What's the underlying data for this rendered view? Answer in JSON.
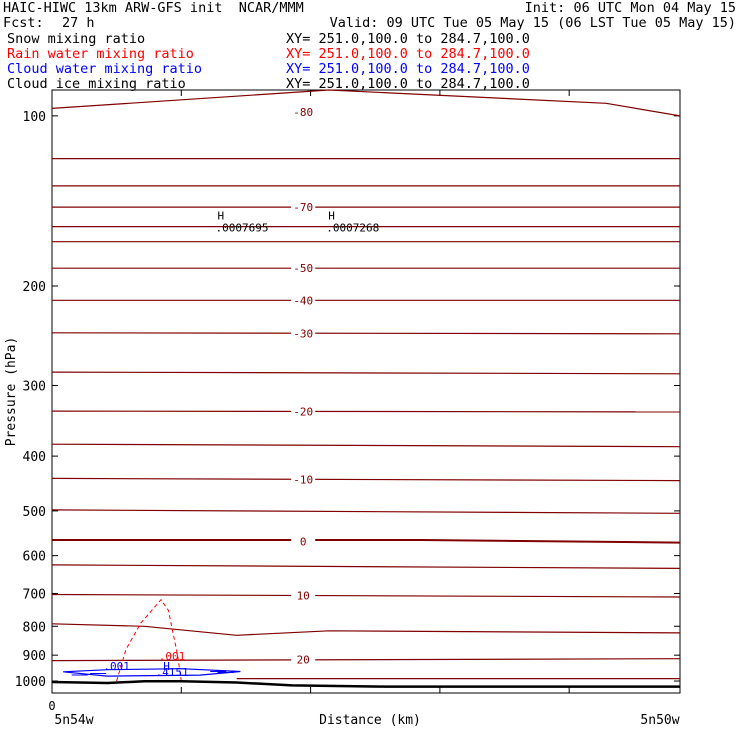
{
  "header": {
    "title": "HAIC-HIWC 13km ARW-GFS init  NCAR/MMM",
    "init": "Init: 06 UTC Mon 04 May 15",
    "fcst_label": "Fcst:",
    "fcst_value": "27 h",
    "valid": "Valid: 09 UTC Tue 05 May 15 (06 LST Tue 05 May 15)"
  },
  "fields": [
    {
      "name": "Snow mixing ratio",
      "xy": "XY= 251.0,100.0 to 284.7,100.0",
      "color": "#000000"
    },
    {
      "name": "Rain water mixing ratio",
      "xy": "XY= 251.0,100.0 to 284.7,100.0",
      "color": "#ff0000"
    },
    {
      "name": "Cloud water mixing ratio",
      "xy": "XY= 251.0,100.0 to 284.7,100.0",
      "color": "#0000ff"
    },
    {
      "name": "Cloud ice mixing ratio",
      "xy": "XY= 251.0,100.0 to 284.7,100.0",
      "color": "#000000"
    }
  ],
  "colors": {
    "temperature": "#800000",
    "rain": "#ff0000",
    "cloud_water": "#0000ff",
    "terrain": "#000000"
  },
  "chart_data": {
    "type": "line",
    "ylabel": "Pressure (hPa)",
    "xlabel": "Distance (km)",
    "y_scale": "log",
    "y_reversed": true,
    "ylim": [
      1050,
      90
    ],
    "y_ticks": [
      "100",
      "200",
      "300",
      "400",
      "500",
      "600",
      "700",
      "800",
      "900",
      "1000"
    ],
    "x_zero_label": "0",
    "x_end_labels": {
      "left": "5n54w",
      "right": "5n50w"
    },
    "x_max": 34,
    "x_tick_positions": [
      0,
      7,
      14,
      21,
      28
    ],
    "isotherms": [
      {
        "label": "-80",
        "points": [
          [
            0,
            97
          ],
          [
            15,
            90
          ],
          [
            30,
            95
          ],
          [
            34,
            100
          ]
        ]
      },
      {
        "label": "",
        "points": [
          [
            0,
            119
          ],
          [
            34,
            119
          ]
        ]
      },
      {
        "label": "",
        "points": [
          [
            0,
            133
          ],
          [
            34,
            133
          ]
        ]
      },
      {
        "label": "-70",
        "points": [
          [
            0,
            145
          ],
          [
            34,
            145
          ]
        ]
      },
      {
        "label": "",
        "points": [
          [
            0,
            157
          ],
          [
            34,
            157
          ]
        ]
      },
      {
        "label": "",
        "points": [
          [
            0,
            167
          ],
          [
            34,
            167
          ]
        ]
      },
      {
        "label": "-50",
        "points": [
          [
            0,
            186
          ],
          [
            34,
            186
          ]
        ]
      },
      {
        "label": "-40",
        "points": [
          [
            0,
            212
          ],
          [
            34,
            212
          ]
        ]
      },
      {
        "label": "-30",
        "points": [
          [
            0,
            242
          ],
          [
            34,
            243
          ]
        ]
      },
      {
        "label": "",
        "points": [
          [
            0,
            284
          ],
          [
            34,
            286
          ]
        ]
      },
      {
        "label": "-20",
        "points": [
          [
            0,
            333
          ],
          [
            34,
            334
          ]
        ]
      },
      {
        "label": "",
        "points": [
          [
            0,
            381
          ],
          [
            34,
            385
          ]
        ]
      },
      {
        "label": "-10",
        "points": [
          [
            0,
            438
          ],
          [
            34,
            442
          ]
        ]
      },
      {
        "label": "",
        "points": [
          [
            0,
            498
          ],
          [
            34,
            505
          ]
        ]
      },
      {
        "label": "0",
        "points": [
          [
            0,
            563
          ],
          [
            20,
            563
          ],
          [
            34,
            569
          ]
        ]
      },
      {
        "label": "",
        "points": [
          [
            0,
            623
          ],
          [
            34,
            632
          ]
        ]
      },
      {
        "label": "10",
        "points": [
          [
            0,
            703
          ],
          [
            34,
            710
          ]
        ]
      },
      {
        "label": "",
        "points": [
          [
            0,
            792
          ],
          [
            5,
            800
          ],
          [
            10,
            830
          ],
          [
            15,
            815
          ],
          [
            34,
            822
          ]
        ]
      },
      {
        "label": "20",
        "points": [
          [
            0,
            920
          ],
          [
            34,
            913
          ]
        ]
      },
      {
        "label": "",
        "points": [
          [
            10,
            990
          ],
          [
            14,
            990
          ],
          [
            34,
            990
          ]
        ]
      }
    ],
    "rain_mixing_ratio": {
      "label": ".001",
      "points": [
        [
          3.5,
          1000
        ],
        [
          4,
          880
        ],
        [
          4.8,
          790
        ],
        [
          5.9,
          718
        ],
        [
          6.3,
          750
        ],
        [
          6.8,
          900
        ],
        [
          7,
          1000
        ]
      ]
    },
    "cloud_water_mixing_ratio": {
      "labels": [
        ".001",
        ".4151"
      ],
      "high_marker": "H",
      "points": [
        [
          0.6,
          963
        ],
        [
          3,
          955
        ],
        [
          7,
          951
        ],
        [
          10.2,
          962
        ],
        [
          8,
          976
        ],
        [
          3,
          980
        ],
        [
          0.6,
          963
        ]
      ]
    },
    "upper_maxima": [
      {
        "marker": "H",
        "value": ".0007695",
        "x": 9.5,
        "p": 150
      },
      {
        "marker": "H",
        "value": ".0007268",
        "x": 15.5,
        "p": 150
      }
    ],
    "terrain": {
      "points": [
        [
          0,
          1004
        ],
        [
          3,
          1008
        ],
        [
          5,
          1001
        ],
        [
          7,
          1001
        ],
        [
          10,
          1006
        ],
        [
          13,
          1018
        ],
        [
          18,
          1023
        ],
        [
          34,
          1023
        ]
      ]
    }
  }
}
